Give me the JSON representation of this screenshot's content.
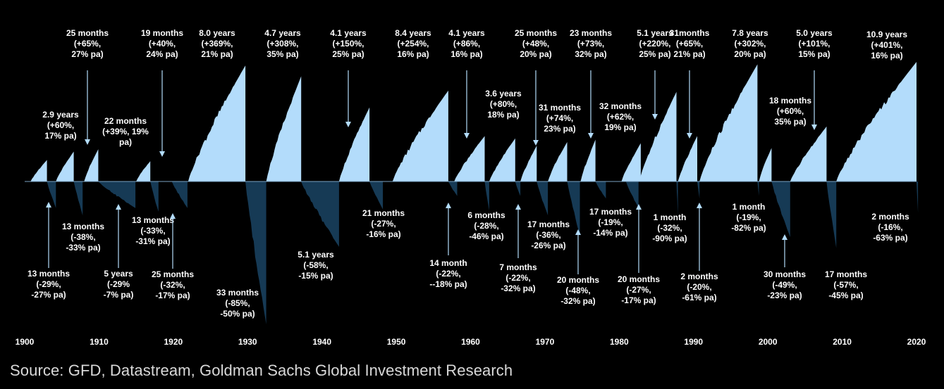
{
  "colors": {
    "background": "#000000",
    "bull": "#b3dcfb",
    "bear": "#163a55",
    "text": "#ffffff",
    "arrow": "#b3dcfb",
    "source_text": "#d9d9d9"
  },
  "source": "Source: GFD, Datastream, Goldman Sachs Global Investment Research",
  "chart_data": {
    "type": "area",
    "title": "",
    "xlabel": "",
    "ylabel": "",
    "xlim": [
      1900,
      2020
    ],
    "x_ticks": [
      "1900",
      "1910",
      "1920",
      "1930",
      "1940",
      "1950",
      "1960",
      "1970",
      "1980",
      "1990",
      "2000",
      "2010",
      "2020"
    ],
    "grid": false,
    "legend": "none",
    "bull_markets": [
      {
        "start": 1900.8,
        "end": 1903.0,
        "peak": 0.18,
        "label": [
          "2.9 years",
          "(+60%,",
          "17% pa)"
        ]
      },
      {
        "start": 1904.2,
        "end": 1906.6,
        "peak": 0.25,
        "label": [
          "25 months",
          "(+65%,",
          "27% pa)"
        ]
      },
      {
        "start": 1908.0,
        "end": 1909.9,
        "peak": 0.27,
        "label": [
          "22 months",
          "(+39%, 19%",
          "pa)"
        ]
      },
      {
        "start": 1915.0,
        "end": 1916.9,
        "peak": 0.17,
        "label": [
          "19 months",
          "(+40%,",
          "24% pa)"
        ]
      },
      {
        "start": 1922.0,
        "end": 1929.7,
        "peak": 0.97,
        "label": [
          "8.0 years",
          "(+369%,",
          "21% pa)"
        ]
      },
      {
        "start": 1932.5,
        "end": 1937.2,
        "peak": 0.88,
        "label": [
          "4.7 years",
          "(+308%,",
          "35% pa)"
        ]
      },
      {
        "start": 1942.3,
        "end": 1946.4,
        "peak": 0.62,
        "label": [
          "4.1  years",
          "(+150%,",
          "25% pa)"
        ]
      },
      {
        "start": 1949.5,
        "end": 1957.0,
        "peak": 0.76,
        "label": [
          "8.4 years",
          "(+254%,",
          "16% pa)"
        ]
      },
      {
        "start": 1957.8,
        "end": 1961.9,
        "peak": 0.38,
        "label": [
          "4.1 years",
          "(+86%,",
          "16% pa)"
        ]
      },
      {
        "start": 1962.5,
        "end": 1966.0,
        "peak": 0.36,
        "label": [
          "3.6 years",
          "(+80%,",
          "18% pa)"
        ]
      },
      {
        "start": 1966.7,
        "end": 1968.9,
        "peak": 0.3,
        "label": [
          "25 months",
          "(+48%,",
          "20% pa)"
        ]
      },
      {
        "start": 1970.4,
        "end": 1973.0,
        "peak": 0.33,
        "label": [
          "31 months",
          "(+74%,",
          "23% pa)"
        ]
      },
      {
        "start": 1974.8,
        "end": 1976.8,
        "peak": 0.35,
        "label": [
          "23 months",
          "(+73%,",
          "32% pa)"
        ]
      },
      {
        "start": 1980.3,
        "end": 1982.9,
        "peak": 0.32,
        "label": [
          "32 months",
          "(+62%,",
          "19% pa)"
        ]
      },
      {
        "start": 1982.7,
        "end": 1987.7,
        "peak": 0.75,
        "label": [
          "5.1 years",
          "(+220%,",
          "25% pa)"
        ]
      },
      {
        "start": 1987.9,
        "end": 1990.5,
        "peak": 0.38,
        "label": [
          "31months",
          "(+65%,",
          "21% pa)"
        ]
      },
      {
        "start": 1990.8,
        "end": 1998.6,
        "peak": 0.98,
        "label": [
          "7.8 years",
          "(+302%,",
          "20% pa)"
        ]
      },
      {
        "start": 1998.8,
        "end": 2000.5,
        "peak": 0.28,
        "label": [
          "18 months",
          "(+60%,",
          "35% pa)"
        ]
      },
      {
        "start": 2003.0,
        "end": 2007.9,
        "peak": 0.46,
        "label": [
          "5.0 years",
          "(+101%,",
          "15% pa)"
        ]
      },
      {
        "start": 2009.2,
        "end": 2020.0,
        "peak": 1.0,
        "label": [
          "10.9 years",
          "(+401%,",
          "16% pa)"
        ]
      }
    ],
    "bear_markets": [
      {
        "start": 1903.0,
        "end": 1904.2,
        "trough": -0.22,
        "label": [
          "13 months",
          "(-29%,",
          "-27% pa)"
        ]
      },
      {
        "start": 1906.6,
        "end": 1907.8,
        "trough": -0.28,
        "label": [
          "13 months",
          "(-38%,",
          "-33% pa)"
        ]
      },
      {
        "start": 1909.9,
        "end": 1914.9,
        "trough": -0.22,
        "label": [
          "5 years",
          "(-29%",
          "-7% pa)"
        ]
      },
      {
        "start": 1916.9,
        "end": 1918.0,
        "trough": -0.25,
        "label": [
          "13 months",
          "(-33%,",
          "-31% pa)"
        ]
      },
      {
        "start": 1919.8,
        "end": 1921.9,
        "trough": -0.22,
        "label": [
          "25 months",
          "(-32%,",
          "-17% pa)"
        ]
      },
      {
        "start": 1929.7,
        "end": 1932.5,
        "trough": -1.18,
        "label": [
          "33 months",
          "(-85%,",
          "-50% pa)"
        ]
      },
      {
        "start": 1937.2,
        "end": 1942.3,
        "trough": -0.54,
        "label": [
          "5.1 years",
          "(-58%,",
          "-15% pa)"
        ]
      },
      {
        "start": 1946.4,
        "end": 1948.2,
        "trough": -0.23,
        "label": [
          "21 months",
          "(-27%,",
          "-16% pa)"
        ]
      },
      {
        "start": 1957.0,
        "end": 1958.2,
        "trough": -0.12,
        "label": [
          "14 month",
          "(-22%,",
          "--18% pa)"
        ]
      },
      {
        "start": 1961.9,
        "end": 1962.5,
        "trough": -0.24,
        "label": [
          "6 months",
          "(-28%,",
          "-46% pa)"
        ]
      },
      {
        "start": 1966.0,
        "end": 1966.7,
        "trough": -0.12,
        "label": [
          "7 months",
          "(-22%,",
          "-32% pa)"
        ]
      },
      {
        "start": 1968.9,
        "end": 1970.4,
        "trough": -0.28,
        "label": [
          "17 months",
          "(-36%,",
          "-26% pa)"
        ]
      },
      {
        "start": 1973.0,
        "end": 1974.7,
        "trough": -0.45,
        "label": [
          "20 months",
          "(-48%,",
          "-32% pa)"
        ]
      },
      {
        "start": 1976.8,
        "end": 1978.2,
        "trough": -0.14,
        "label": [
          "17 months",
          "(-19%,",
          "-14% pa)"
        ]
      },
      {
        "start": 1980.9,
        "end": 1982.6,
        "trough": -0.22,
        "label": [
          "20 months",
          "(-27%,",
          "-17% pa)"
        ]
      },
      {
        "start": 1987.7,
        "end": 1987.9,
        "trough": -0.28,
        "label": [
          "1 month",
          "(-32%,",
          "-90% pa)"
        ]
      },
      {
        "start": 1990.5,
        "end": 1990.8,
        "trough": -0.14,
        "label": [
          "2 months",
          "(-20%,",
          "-61% pa)"
        ]
      },
      {
        "start": 1998.6,
        "end": 1998.8,
        "trough": -0.12,
        "label": [
          "1 month",
          "(-19%,",
          "-82% pa)"
        ]
      },
      {
        "start": 2000.5,
        "end": 2003.0,
        "trough": -0.46,
        "label": [
          "30 months",
          "(-49%,",
          "-23% pa)"
        ]
      },
      {
        "start": 2007.9,
        "end": 2009.2,
        "trough": -0.55,
        "label": [
          "17 months",
          "(-57%,",
          "-45% pa)"
        ]
      },
      {
        "start": 2020.0,
        "end": 2020.2,
        "trough": -0.26,
        "label": [
          "2 months",
          "(-16%,",
          "-63% pa)"
        ]
      }
    ]
  }
}
